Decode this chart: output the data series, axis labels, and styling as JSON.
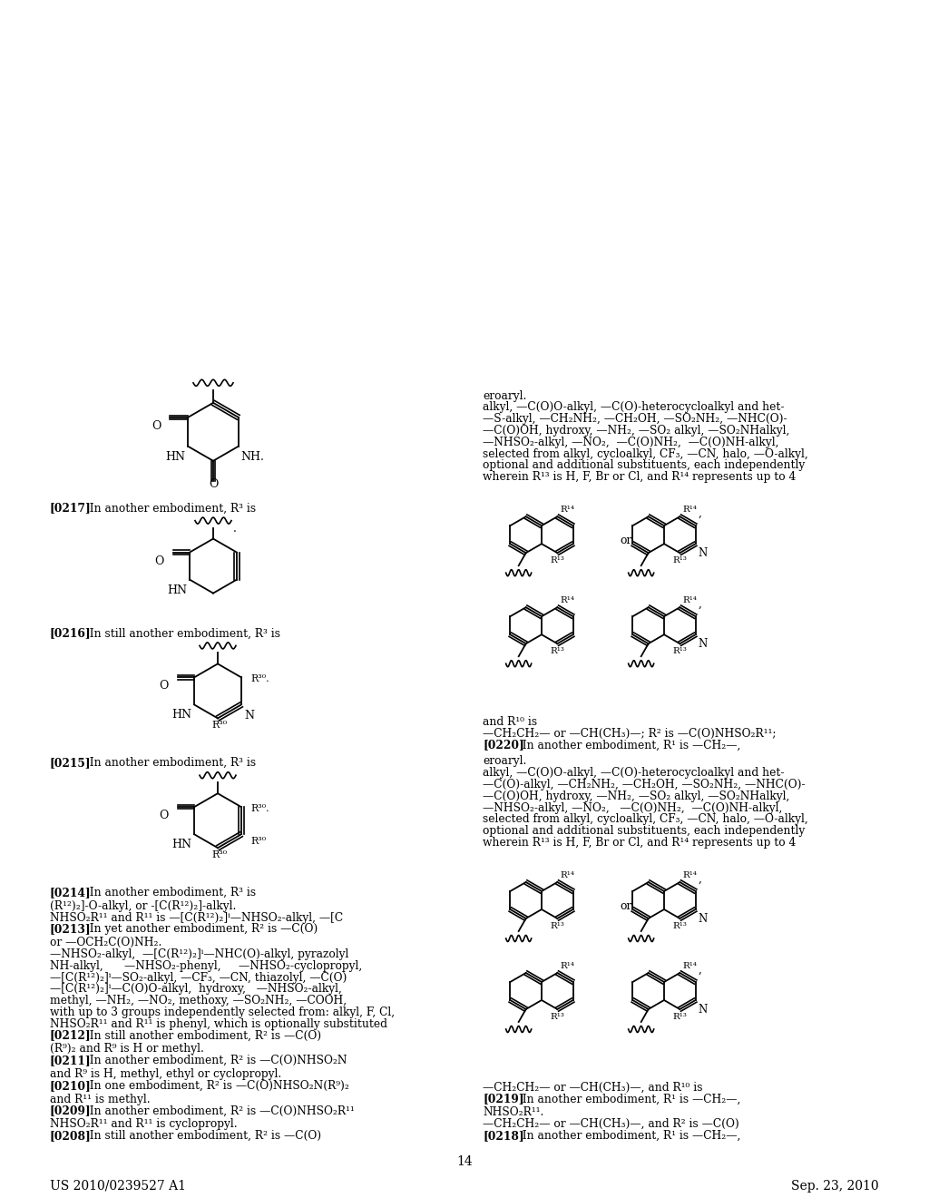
{
  "page_number": "14",
  "header_left": "US 2010/0239527 A1",
  "header_right": "Sep. 23, 2010",
  "background_color": "#ffffff"
}
